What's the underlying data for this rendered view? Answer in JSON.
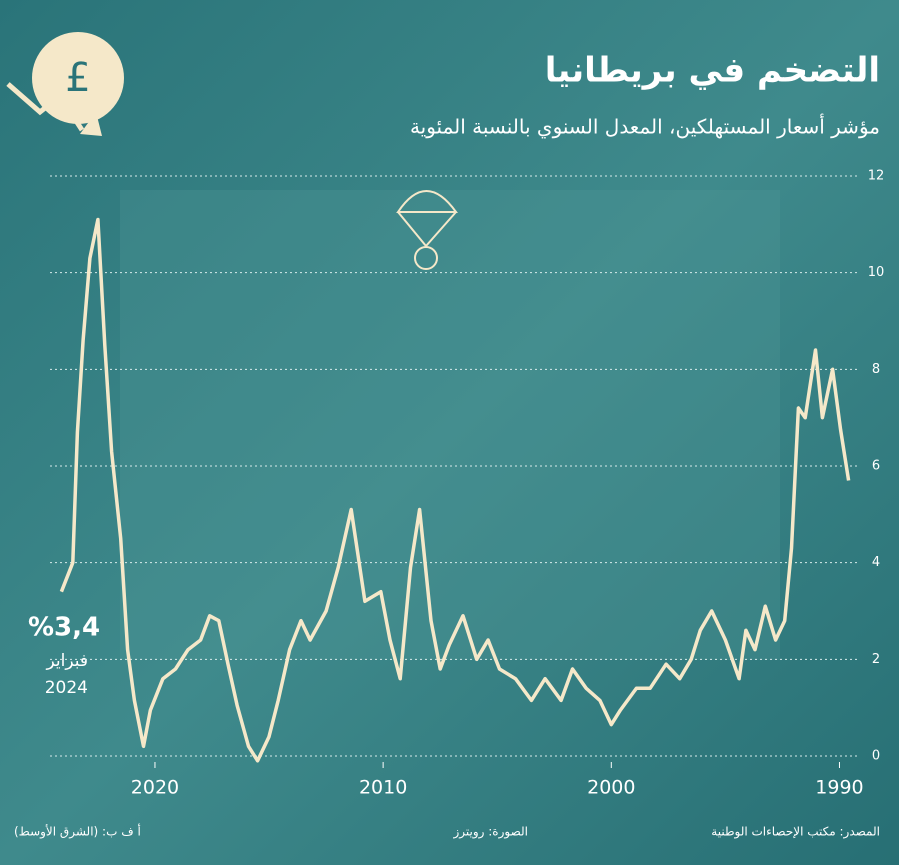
{
  "chart_data": {
    "type": "line",
    "title": "التضخم في بريطانيا",
    "subtitle": "مؤشر أسعار المستهلكين، المعدل السنوي بالنسبة المئوية",
    "x": [
      1989.6,
      1989.95,
      1990.3,
      1990.75,
      1991.05,
      1991.5,
      1991.8,
      1992.1,
      1992.4,
      1992.8,
      1993.25,
      1993.7,
      1994.1,
      1994.4,
      1995.0,
      1995.6,
      1996.1,
      1996.5,
      1997.0,
      1997.6,
      1998.3,
      1998.9,
      1999.6,
      2000.0,
      2000.5,
      2001.1,
      2001.7,
      2002.2,
      2002.9,
      2003.5,
      2004.2,
      2004.9,
      2005.4,
      2005.9,
      2006.5,
      2007.1,
      2007.5,
      2007.9,
      2008.4,
      2008.8,
      2009.25,
      2009.7,
      2010.1,
      2010.8,
      2011.4,
      2011.97,
      2012.5,
      2013.2,
      2013.6,
      2014.1,
      2014.6,
      2015.0,
      2015.5,
      2015.9,
      2016.4,
      2016.8,
      2017.2,
      2017.6,
      2018.0,
      2018.55,
      2019.1,
      2019.65,
      2020.2,
      2020.5,
      2020.9,
      2021.2,
      2021.5,
      2021.9,
      2022.2,
      2022.5,
      2022.85,
      2023.15,
      2023.4,
      2023.6,
      2024.1
    ],
    "series": [
      {
        "color": "#f5e8c9",
        "values": [
          5.7,
          6.75,
          8.0,
          7.0,
          8.4,
          7.0,
          7.2,
          4.3,
          2.8,
          2.4,
          3.1,
          2.2,
          2.6,
          1.6,
          2.4,
          3.0,
          2.6,
          2.0,
          1.6,
          1.9,
          1.4,
          1.4,
          0.95,
          0.65,
          1.15,
          1.4,
          1.8,
          1.15,
          1.6,
          1.15,
          1.6,
          1.8,
          2.4,
          2.0,
          2.9,
          2.3,
          1.8,
          2.8,
          5.1,
          3.9,
          1.6,
          2.4,
          3.4,
          3.2,
          5.1,
          3.9,
          3.0,
          2.4,
          2.8,
          2.2,
          1.15,
          0.4,
          -0.1,
          0.2,
          1.05,
          1.9,
          2.8,
          2.9,
          2.4,
          2.2,
          1.8,
          1.6,
          0.95,
          0.2,
          1.15,
          2.2,
          4.5,
          6.3,
          8.5,
          11.1,
          10.3,
          8.6,
          6.7,
          4.0,
          3.4
        ]
      }
    ],
    "xlim": [
      1989.1,
      2024.6
    ],
    "x_reversed": true,
    "xticks": [
      1990,
      2000,
      2010,
      2020
    ],
    "ylim": [
      0,
      12
    ],
    "yticks": [
      0,
      2,
      4,
      6,
      8,
      10,
      12
    ],
    "grid": true,
    "annotation": {
      "value": "%3,4",
      "month": "فبراير",
      "year": "2024"
    },
    "source": "المصدر: مكتب الإحصاءات الوطنية",
    "photo_credit": "الصورة: رويترز",
    "agency": "أ ف ب: (الشرق الأوسط)"
  }
}
